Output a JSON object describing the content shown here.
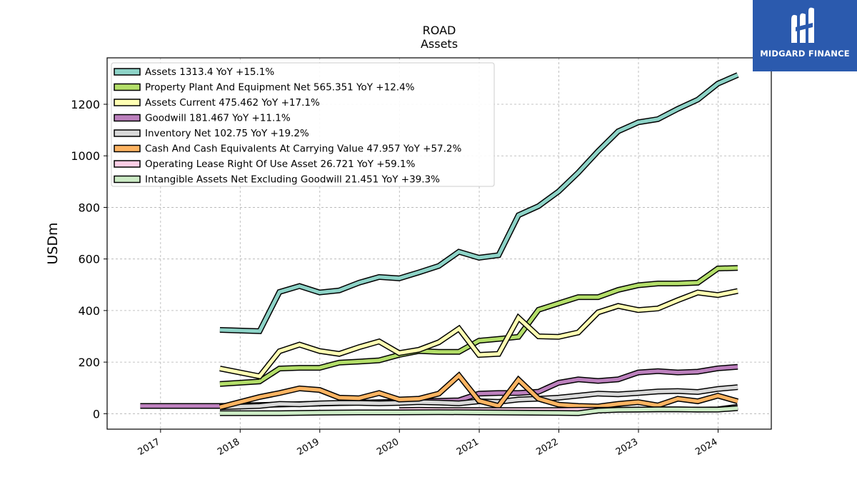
{
  "brand": {
    "name": "MIDGARD FINANCE",
    "color": "#2b5aae"
  },
  "chart_data": {
    "type": "line",
    "title": "ROAD",
    "subtitle": "Assets",
    "ylabel": "USDm",
    "xlabel": "",
    "ylim": [
      -60,
      1380
    ],
    "xlim": [
      "2016-05-01",
      "2024-09-01"
    ],
    "yticks": [
      0,
      200,
      400,
      600,
      800,
      1000,
      1200
    ],
    "xticks": [
      "2017",
      "2018",
      "2019",
      "2020",
      "2021",
      "2022",
      "2023",
      "2024"
    ],
    "grid": true,
    "legend_position": "top-left",
    "series": [
      {
        "name": "Assets",
        "label": "Assets  1313.4 YoY +15.1%",
        "color": "#8dd3c7",
        "points": [
          [
            "2017-09-30",
            325
          ],
          [
            "2018-03-31",
            320
          ],
          [
            "2018-06-30",
            472
          ],
          [
            "2018-09-30",
            495
          ],
          [
            "2018-12-31",
            470
          ],
          [
            "2019-03-31",
            478
          ],
          [
            "2019-06-30",
            508
          ],
          [
            "2019-09-30",
            530
          ],
          [
            "2019-12-31",
            525
          ],
          [
            "2020-03-31",
            548
          ],
          [
            "2020-06-30",
            573
          ],
          [
            "2020-09-30",
            628
          ],
          [
            "2020-12-31",
            605
          ],
          [
            "2021-03-31",
            615
          ],
          [
            "2021-06-30",
            770
          ],
          [
            "2021-09-30",
            805
          ],
          [
            "2021-12-31",
            862
          ],
          [
            "2022-03-31",
            935
          ],
          [
            "2022-06-30",
            1018
          ],
          [
            "2022-09-30",
            1095
          ],
          [
            "2022-12-31",
            1130
          ],
          [
            "2023-03-31",
            1142
          ],
          [
            "2023-06-30",
            1182
          ],
          [
            "2023-09-30",
            1218
          ],
          [
            "2023-12-31",
            1280
          ],
          [
            "2024-03-31",
            1313.4
          ]
        ]
      },
      {
        "name": "Property Plant And Equipment Net",
        "label": "Property Plant And Equipment Net  565.351 YoY +12.4%",
        "color": "#b3de69",
        "points": [
          [
            "2017-09-30",
            115
          ],
          [
            "2018-03-31",
            125
          ],
          [
            "2018-06-30",
            175
          ],
          [
            "2018-09-30",
            178
          ],
          [
            "2018-12-31",
            178
          ],
          [
            "2019-03-31",
            198
          ],
          [
            "2019-06-30",
            202
          ],
          [
            "2019-09-30",
            207
          ],
          [
            "2019-12-31",
            228
          ],
          [
            "2020-03-31",
            243
          ],
          [
            "2020-06-30",
            240
          ],
          [
            "2020-09-30",
            240
          ],
          [
            "2020-12-31",
            283
          ],
          [
            "2021-03-31",
            290
          ],
          [
            "2021-06-30",
            298
          ],
          [
            "2021-09-30",
            403
          ],
          [
            "2021-12-31",
            428
          ],
          [
            "2022-03-31",
            452
          ],
          [
            "2022-06-30",
            452
          ],
          [
            "2022-09-30",
            480
          ],
          [
            "2022-12-31",
            498
          ],
          [
            "2023-03-31",
            505
          ],
          [
            "2023-06-30",
            505
          ],
          [
            "2023-09-30",
            508
          ],
          [
            "2023-12-31",
            563
          ],
          [
            "2024-03-31",
            565.351
          ]
        ]
      },
      {
        "name": "Assets Current",
        "label": "Assets Current  475.462 YoY +17.1%",
        "color": "#ffffb3",
        "points": [
          [
            "2017-09-30",
            175
          ],
          [
            "2018-03-31",
            145
          ],
          [
            "2018-06-30",
            242
          ],
          [
            "2018-09-30",
            268
          ],
          [
            "2018-12-31",
            243
          ],
          [
            "2019-03-31",
            232
          ],
          [
            "2019-06-30",
            258
          ],
          [
            "2019-09-30",
            280
          ],
          [
            "2019-12-31",
            235
          ],
          [
            "2020-03-31",
            248
          ],
          [
            "2020-06-30",
            277
          ],
          [
            "2020-09-30",
            330
          ],
          [
            "2020-12-31",
            228
          ],
          [
            "2021-03-31",
            232
          ],
          [
            "2021-06-30",
            372
          ],
          [
            "2021-09-30",
            300
          ],
          [
            "2021-12-31",
            298
          ],
          [
            "2022-03-31",
            315
          ],
          [
            "2022-06-30",
            393
          ],
          [
            "2022-09-30",
            418
          ],
          [
            "2022-12-31",
            402
          ],
          [
            "2023-03-31",
            408
          ],
          [
            "2023-06-30",
            440
          ],
          [
            "2023-09-30",
            470
          ],
          [
            "2023-12-31",
            460
          ],
          [
            "2024-03-31",
            475.462
          ]
        ]
      },
      {
        "name": "Goodwill",
        "label": "Goodwill  181.467 YoY +11.1%",
        "color": "#bc80bd",
        "points": [
          [
            "2016-09-30",
            30
          ],
          [
            "2017-09-30",
            30
          ],
          [
            "2020-06-30",
            50
          ],
          [
            "2020-09-30",
            52
          ],
          [
            "2020-12-31",
            78
          ],
          [
            "2021-03-31",
            80
          ],
          [
            "2021-06-30",
            80
          ],
          [
            "2021-09-30",
            85
          ],
          [
            "2021-12-31",
            120
          ],
          [
            "2022-03-31",
            133
          ],
          [
            "2022-06-30",
            127
          ],
          [
            "2022-09-30",
            133
          ],
          [
            "2022-12-31",
            160
          ],
          [
            "2023-03-31",
            165
          ],
          [
            "2023-06-30",
            160
          ],
          [
            "2023-09-30",
            163
          ],
          [
            "2023-12-31",
            176
          ],
          [
            "2024-03-31",
            181.467
          ]
        ]
      },
      {
        "name": "Inventory Net",
        "label": "Inventory Net  102.75 YoY +19.2%",
        "color": "#d9d9d9",
        "points": [
          [
            "2017-09-30",
            25
          ],
          [
            "2018-03-31",
            30
          ],
          [
            "2018-06-30",
            38
          ],
          [
            "2018-09-30",
            36
          ],
          [
            "2018-12-31",
            40
          ],
          [
            "2019-03-31",
            42
          ],
          [
            "2019-06-30",
            42
          ],
          [
            "2019-09-30",
            40
          ],
          [
            "2019-12-31",
            42
          ],
          [
            "2020-03-31",
            45
          ],
          [
            "2020-06-30",
            43
          ],
          [
            "2020-09-30",
            40
          ],
          [
            "2020-12-31",
            48
          ],
          [
            "2021-03-31",
            46
          ],
          [
            "2021-06-30",
            55
          ],
          [
            "2021-09-30",
            58
          ],
          [
            "2021-12-31",
            62
          ],
          [
            "2022-03-31",
            70
          ],
          [
            "2022-06-30",
            78
          ],
          [
            "2022-09-30",
            75
          ],
          [
            "2022-12-31",
            80
          ],
          [
            "2023-03-31",
            86
          ],
          [
            "2023-06-30",
            88
          ],
          [
            "2023-09-30",
            84
          ],
          [
            "2023-12-31",
            96
          ],
          [
            "2024-03-31",
            102.75
          ]
        ]
      },
      {
        "name": "Cash And Cash Equivalents At Carrying Value",
        "label": "Cash And Cash Equivalents At Carrying Value  47.957 YoY +57.2%",
        "color": "#fdb462",
        "points": [
          [
            "2017-09-30",
            25
          ],
          [
            "2018-03-31",
            65
          ],
          [
            "2018-06-30",
            80
          ],
          [
            "2018-09-30",
            98
          ],
          [
            "2018-12-31",
            92
          ],
          [
            "2019-03-31",
            62
          ],
          [
            "2019-06-30",
            60
          ],
          [
            "2019-09-30",
            80
          ],
          [
            "2019-12-31",
            55
          ],
          [
            "2020-03-31",
            58
          ],
          [
            "2020-06-30",
            78
          ],
          [
            "2020-09-30",
            148
          ],
          [
            "2020-12-31",
            50
          ],
          [
            "2021-03-31",
            30
          ],
          [
            "2021-06-30",
            132
          ],
          [
            "2021-09-30",
            58
          ],
          [
            "2021-12-31",
            35
          ],
          [
            "2022-03-31",
            30
          ],
          [
            "2022-06-30",
            28
          ],
          [
            "2022-09-30",
            38
          ],
          [
            "2022-12-31",
            45
          ],
          [
            "2023-03-31",
            32
          ],
          [
            "2023-06-30",
            58
          ],
          [
            "2023-09-30",
            48
          ],
          [
            "2023-12-31",
            70
          ],
          [
            "2024-03-31",
            47.957
          ]
        ]
      },
      {
        "name": "Operating Lease Right Of Use Asset",
        "label": "Operating Lease Right Of Use Asset  26.721 YoY +59.1%",
        "color": "#fccde5",
        "points": [
          [
            "2019-12-31",
            14
          ],
          [
            "2020-03-31",
            15
          ],
          [
            "2020-06-30",
            14
          ],
          [
            "2020-09-30",
            14
          ],
          [
            "2020-12-31",
            14
          ],
          [
            "2021-03-31",
            14
          ],
          [
            "2021-06-30",
            14
          ],
          [
            "2021-09-30",
            14
          ],
          [
            "2021-12-31",
            14
          ],
          [
            "2022-03-31",
            15
          ],
          [
            "2022-06-30",
            15
          ],
          [
            "2022-09-30",
            16
          ],
          [
            "2022-12-31",
            16
          ],
          [
            "2023-03-31",
            17
          ],
          [
            "2023-06-30",
            17
          ],
          [
            "2023-09-30",
            16
          ],
          [
            "2023-12-31",
            17
          ],
          [
            "2024-03-31",
            26.721
          ]
        ]
      },
      {
        "name": "Intangible Assets Net Excluding Goodwill",
        "label": "Intangible Assets Net Excluding Goodwill  21.451 YoY +39.3%",
        "color": "#ccebc5",
        "points": [
          [
            "2017-09-30",
            2
          ],
          [
            "2018-06-30",
            2
          ],
          [
            "2018-12-31",
            4
          ],
          [
            "2019-06-30",
            5
          ],
          [
            "2019-12-31",
            5
          ],
          [
            "2020-06-30",
            6
          ],
          [
            "2020-12-31",
            5
          ],
          [
            "2021-06-30",
            4
          ],
          [
            "2021-12-31",
            3
          ],
          [
            "2022-03-31",
            2
          ],
          [
            "2022-06-30",
            12
          ],
          [
            "2022-09-30",
            15
          ],
          [
            "2022-12-31",
            16
          ],
          [
            "2023-03-31",
            17
          ],
          [
            "2023-06-30",
            17
          ],
          [
            "2023-09-30",
            16
          ],
          [
            "2023-12-31",
            16
          ],
          [
            "2024-03-31",
            21.451
          ]
        ]
      }
    ]
  }
}
